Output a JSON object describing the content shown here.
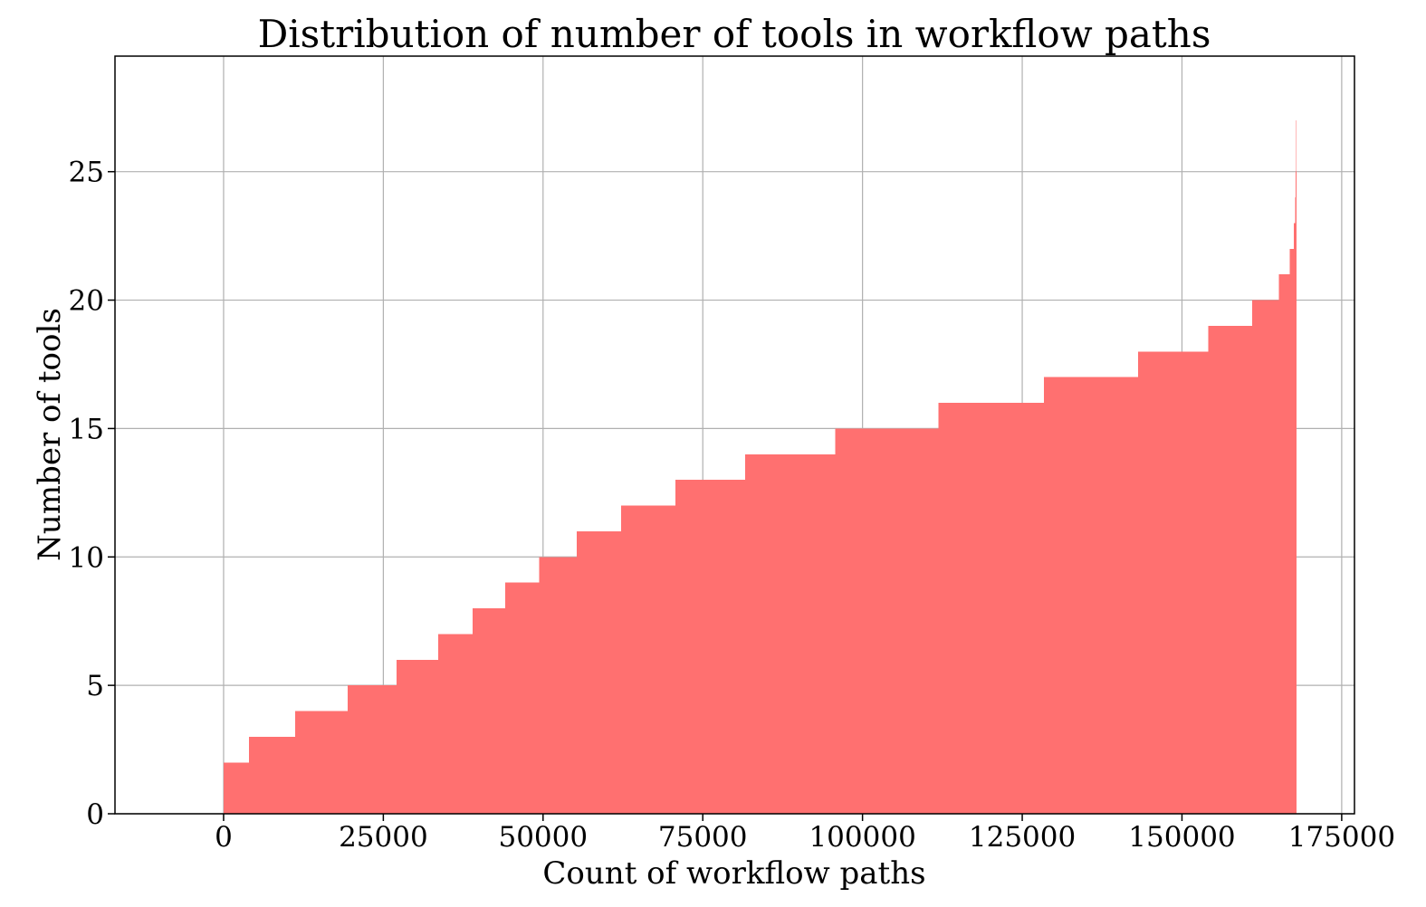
{
  "chart_data": {
    "type": "bar",
    "orientation": "horizontal-step",
    "title": "Distribution of number of tools in workflow paths",
    "xlabel": "Count of workflow paths",
    "ylabel": "Number of tools",
    "xlim": [
      -17000,
      177000
    ],
    "ylim": [
      0,
      29.5
    ],
    "xticks": [
      0,
      25000,
      50000,
      75000,
      100000,
      125000,
      150000,
      175000
    ],
    "yticks": [
      0,
      5,
      10,
      15,
      20,
      25
    ],
    "grid": true,
    "color": "#ff7070",
    "series": [
      {
        "steps": [
          {
            "x_start": 0,
            "x_end": 4000,
            "tools": 2
          },
          {
            "x_start": 4000,
            "x_end": 11200,
            "tools": 3
          },
          {
            "x_start": 11200,
            "x_end": 19400,
            "tools": 4
          },
          {
            "x_start": 19400,
            "x_end": 27100,
            "tools": 5
          },
          {
            "x_start": 27100,
            "x_end": 33600,
            "tools": 6
          },
          {
            "x_start": 33600,
            "x_end": 39000,
            "tools": 7
          },
          {
            "x_start": 39000,
            "x_end": 44100,
            "tools": 8
          },
          {
            "x_start": 44100,
            "x_end": 49400,
            "tools": 9
          },
          {
            "x_start": 49400,
            "x_end": 55300,
            "tools": 10
          },
          {
            "x_start": 55300,
            "x_end": 62200,
            "tools": 11
          },
          {
            "x_start": 62200,
            "x_end": 70700,
            "tools": 12
          },
          {
            "x_start": 70700,
            "x_end": 81600,
            "tools": 13
          },
          {
            "x_start": 81600,
            "x_end": 95700,
            "tools": 14
          },
          {
            "x_start": 95700,
            "x_end": 111900,
            "tools": 15
          },
          {
            "x_start": 111900,
            "x_end": 128400,
            "tools": 16
          },
          {
            "x_start": 128400,
            "x_end": 143100,
            "tools": 17
          },
          {
            "x_start": 143100,
            "x_end": 154100,
            "tools": 18
          },
          {
            "x_start": 154100,
            "x_end": 161000,
            "tools": 19
          },
          {
            "x_start": 161000,
            "x_end": 165200,
            "tools": 20
          },
          {
            "x_start": 165200,
            "x_end": 166900,
            "tools": 21
          },
          {
            "x_start": 166900,
            "x_end": 167500,
            "tools": 22
          },
          {
            "x_start": 167500,
            "x_end": 167700,
            "tools": 23
          },
          {
            "x_start": 167700,
            "x_end": 167800,
            "tools": 24
          },
          {
            "x_start": 167800,
            "x_end": 167850,
            "tools": 25
          },
          {
            "x_start": 167850,
            "x_end": 167880,
            "tools": 26
          },
          {
            "x_start": 167880,
            "x_end": 167900,
            "tools": 27
          }
        ]
      }
    ]
  }
}
